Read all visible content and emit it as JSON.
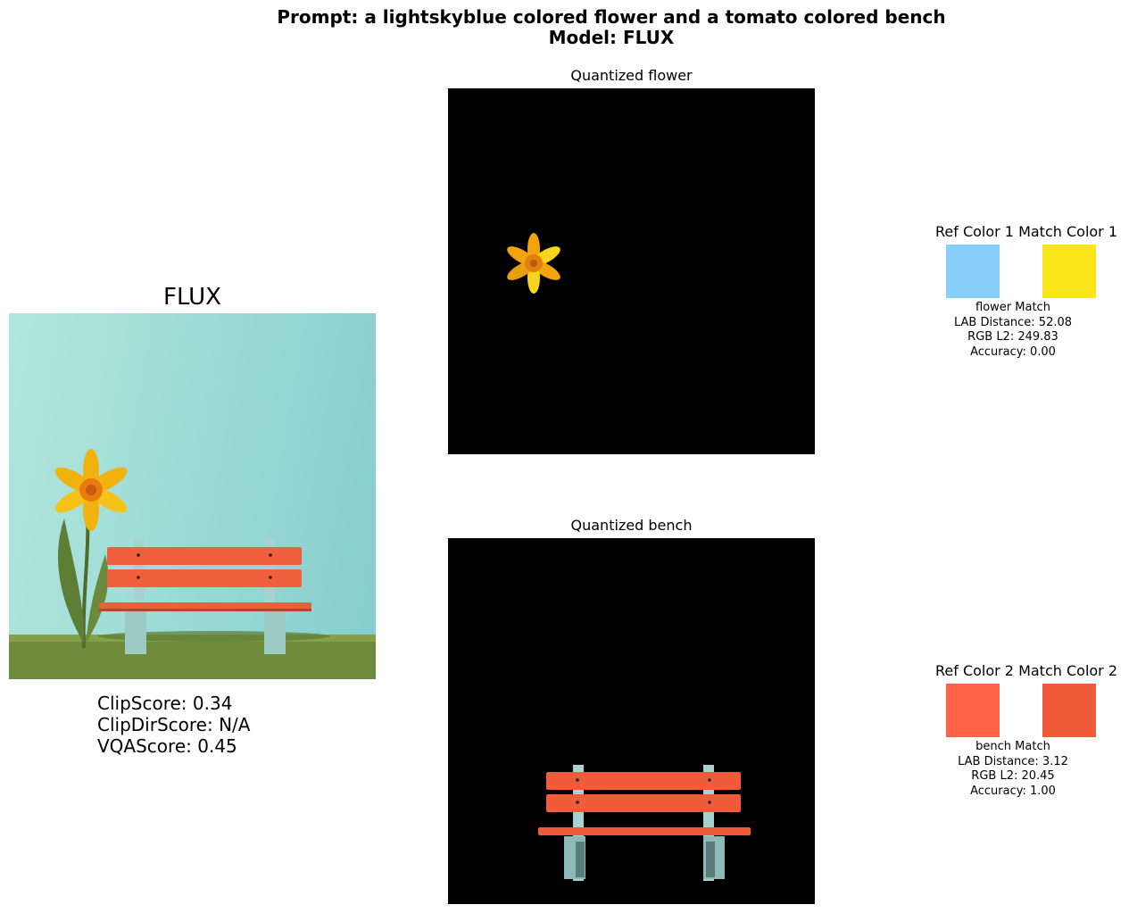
{
  "header": {
    "prompt_line": "Prompt: a lightskyblue colored flower and a tomato colored bench",
    "model_line": "Model: FLUX"
  },
  "main": {
    "model_label": "FLUX",
    "scores": {
      "clip": "ClipScore: 0.34",
      "clipdir": "ClipDirScore: N/A",
      "vqa": "VQAScore: 0.45"
    }
  },
  "panels": [
    {
      "title": "Quantized flower",
      "ref_title": "Ref Color 1 Match Color 1",
      "ref_color": "#87cefa",
      "match_color": "#f9e51a",
      "match_label": "flower Match",
      "lab_distance": "LAB Distance: 52.08",
      "rgb_l2": "RGB L2: 249.83",
      "accuracy": "Accuracy: 0.00"
    },
    {
      "title": "Quantized bench",
      "ref_title": "Ref Color 2 Match Color 2",
      "ref_color": "#ff6347",
      "match_color": "#f05c39",
      "match_label": "bench Match",
      "lab_distance": "LAB Distance: 3.12",
      "rgb_l2": "RGB L2: 20.45",
      "accuracy": "Accuracy: 1.00"
    }
  ],
  "icons": {
    "flower": "flower-icon",
    "bench": "bench-icon"
  }
}
